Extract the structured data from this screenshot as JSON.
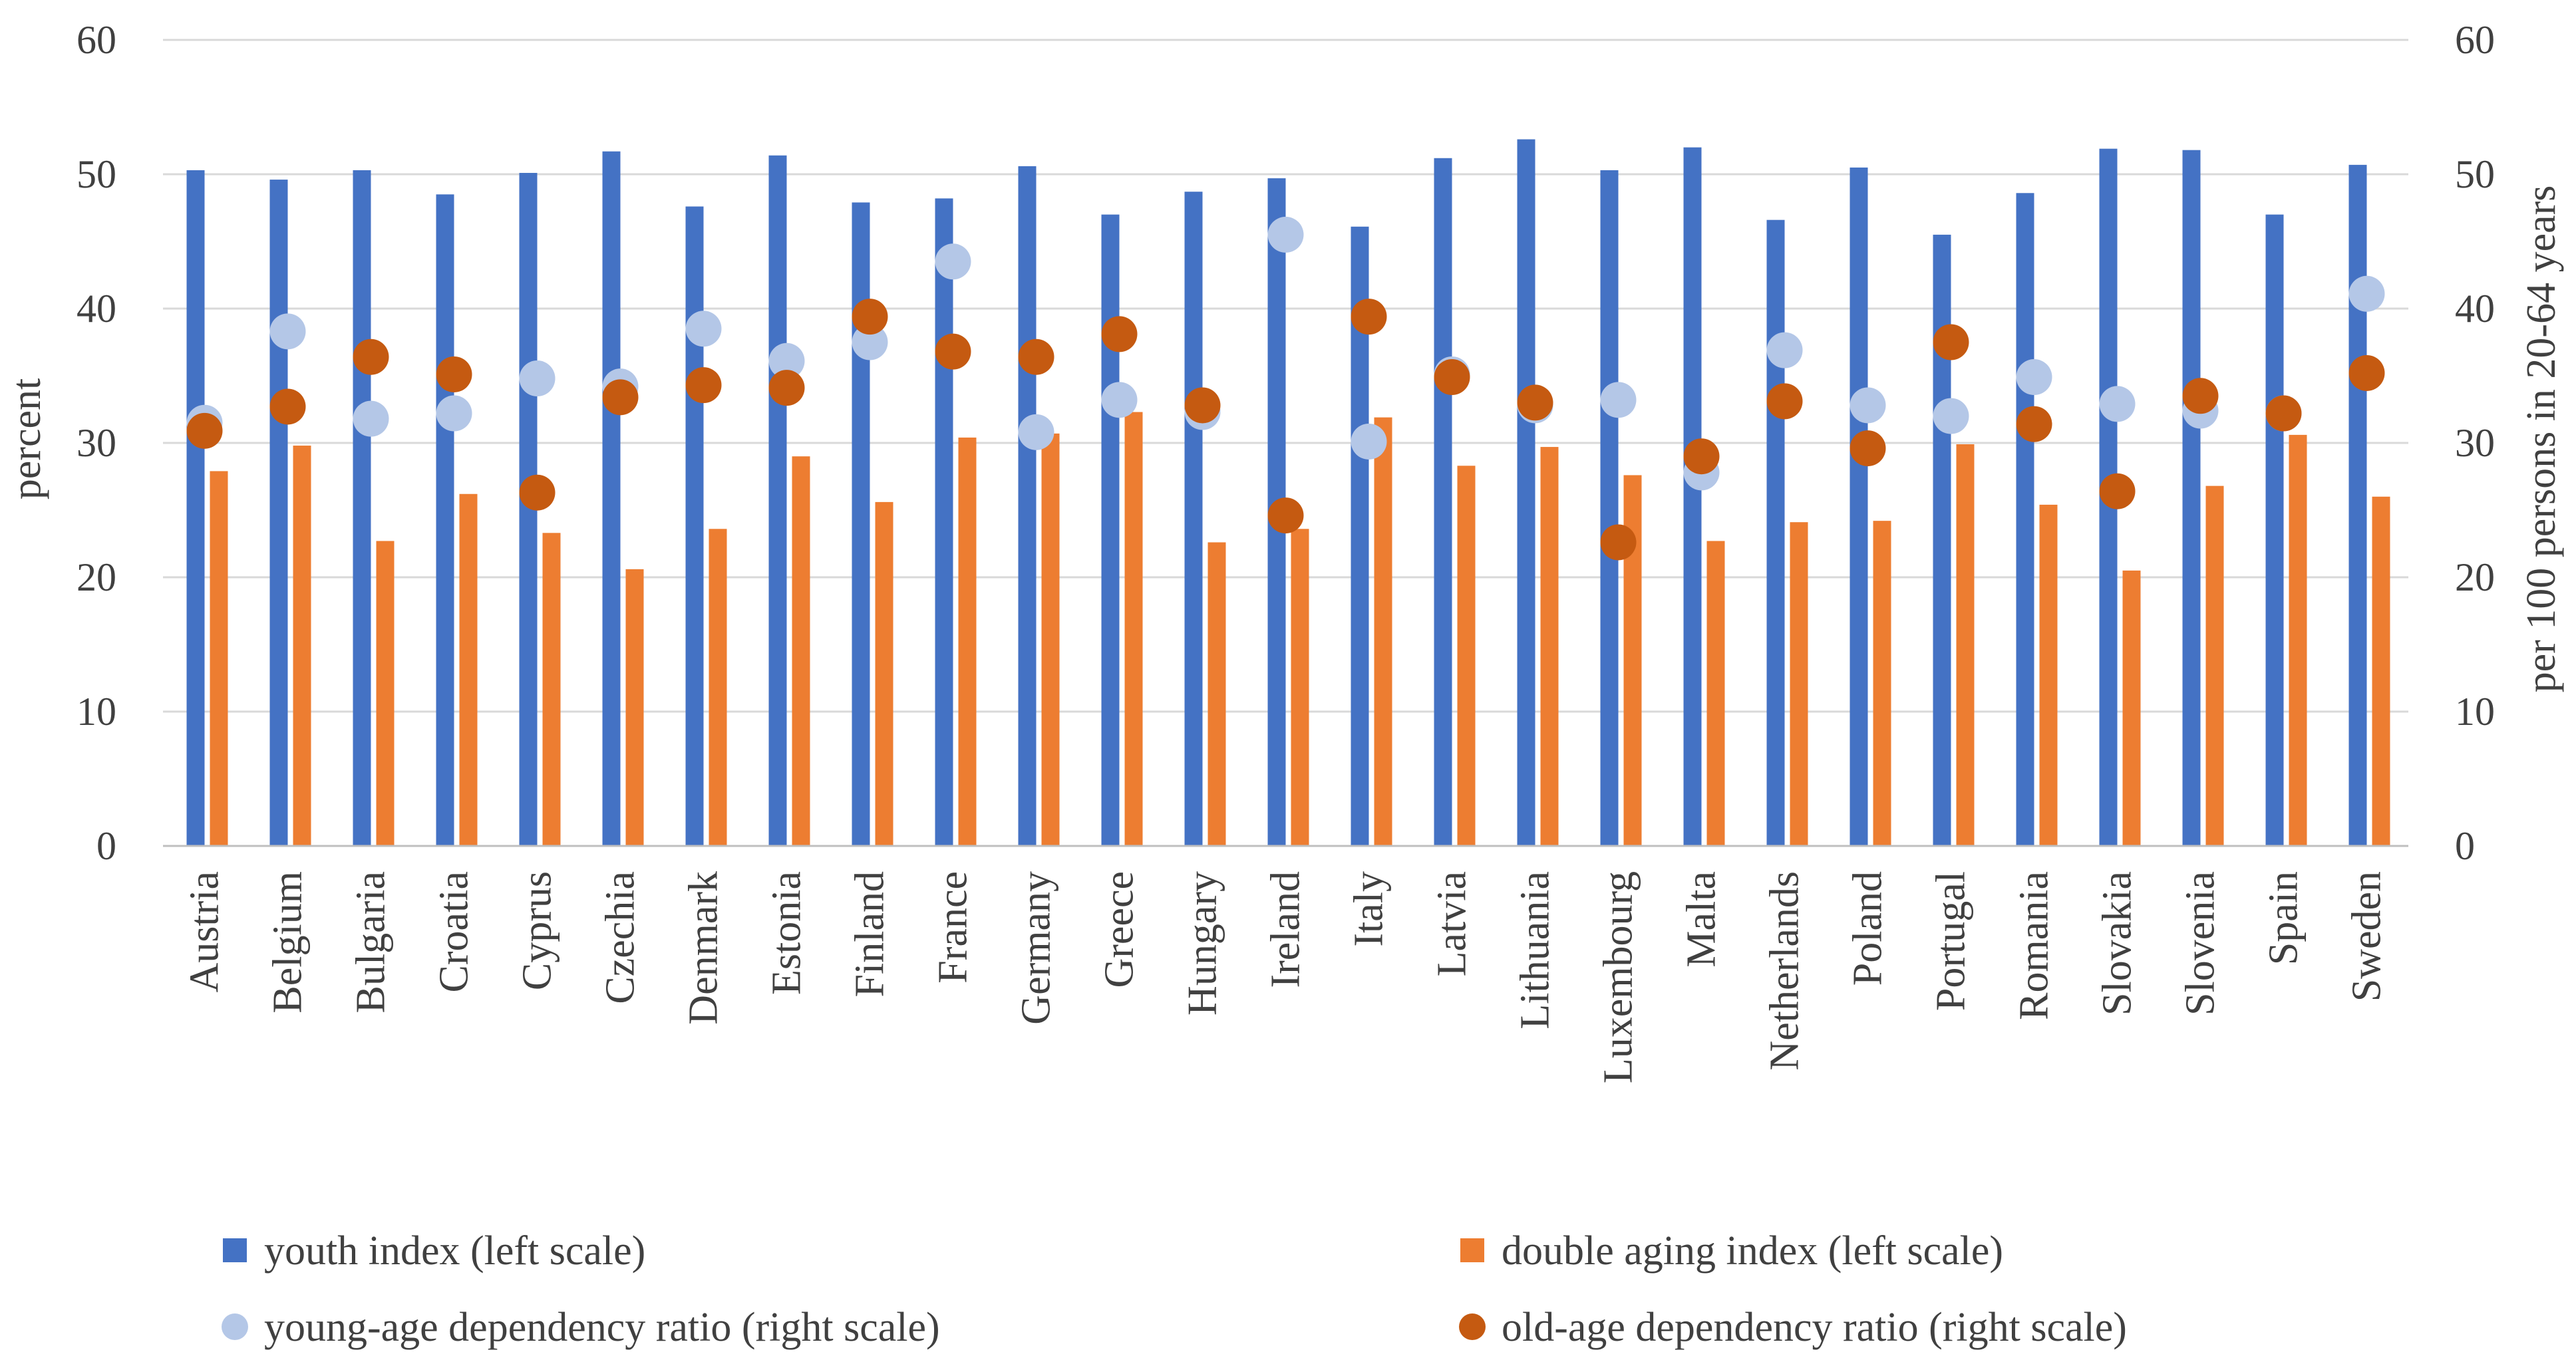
{
  "chart_data": {
    "type": "bar",
    "title": "",
    "ylabel": "percent",
    "y2label": "per 100 persons in 20-64 years",
    "ylim": [
      0,
      60
    ],
    "y2lim": [
      0,
      60
    ],
    "yticks": [
      "0",
      "10",
      "20",
      "30",
      "40",
      "50",
      "60"
    ],
    "y2ticks": [
      "0",
      "10",
      "20",
      "30",
      "40",
      "50",
      "60"
    ],
    "grid": true,
    "legend_position": "bottom",
    "categories": [
      "Austria",
      "Belgium",
      "Bulgaria",
      "Croatia",
      "Cyprus",
      "Czechia",
      "Denmark",
      "Estonia",
      "Finland",
      "France",
      "Germany",
      "Greece",
      "Hungary",
      "Ireland",
      "Italy",
      "Latvia",
      "Lithuania",
      "Luxembourg",
      "Malta",
      "Netherlands",
      "Poland",
      "Portugal",
      "Romania",
      "Slovakia",
      "Slovenia",
      "Spain",
      "Sweden"
    ],
    "series": [
      {
        "name": "youth index (left scale)",
        "type": "bar",
        "axis": "left",
        "color": "#4472C4",
        "values": [
          50.3,
          49.6,
          50.3,
          48.5,
          50.1,
          51.7,
          47.6,
          51.4,
          47.9,
          48.2,
          50.6,
          47.0,
          48.7,
          49.7,
          46.1,
          51.2,
          52.6,
          50.3,
          52.0,
          46.6,
          50.5,
          45.5,
          48.6,
          51.9,
          51.8,
          47.0,
          50.7
        ]
      },
      {
        "name": "double aging index (left scale)",
        "type": "bar",
        "axis": "left",
        "color": "#ED7D31",
        "values": [
          27.9,
          29.8,
          22.7,
          26.2,
          23.3,
          20.6,
          23.6,
          29.0,
          25.6,
          30.4,
          30.7,
          32.3,
          22.6,
          23.6,
          31.9,
          28.3,
          29.7,
          27.6,
          22.7,
          24.1,
          24.2,
          29.9,
          25.4,
          20.5,
          26.8,
          30.6,
          26.0
        ]
      },
      {
        "name": "young-age dependency ratio (right scale)",
        "type": "scatter",
        "axis": "right",
        "color": "#B4C7E7",
        "values": [
          31.5,
          38.3,
          31.8,
          32.2,
          34.8,
          34.2,
          38.5,
          36.1,
          37.5,
          43.5,
          30.8,
          33.2,
          32.3,
          45.5,
          30.1,
          35.1,
          32.8,
          33.2,
          27.8,
          36.9,
          32.8,
          32.0,
          34.9,
          32.9,
          32.4,
          32.2,
          41.1
        ]
      },
      {
        "name": "old-age dependency ratio (right scale)",
        "type": "scatter",
        "axis": "right",
        "color": "#C55A11",
        "values": [
          30.9,
          32.7,
          36.4,
          35.1,
          26.3,
          33.4,
          34.3,
          34.1,
          39.4,
          36.8,
          36.4,
          38.1,
          32.8,
          24.6,
          39.4,
          34.9,
          33.0,
          22.6,
          29.0,
          33.1,
          29.6,
          37.5,
          31.4,
          26.4,
          33.5,
          32.2,
          35.2
        ]
      }
    ]
  }
}
